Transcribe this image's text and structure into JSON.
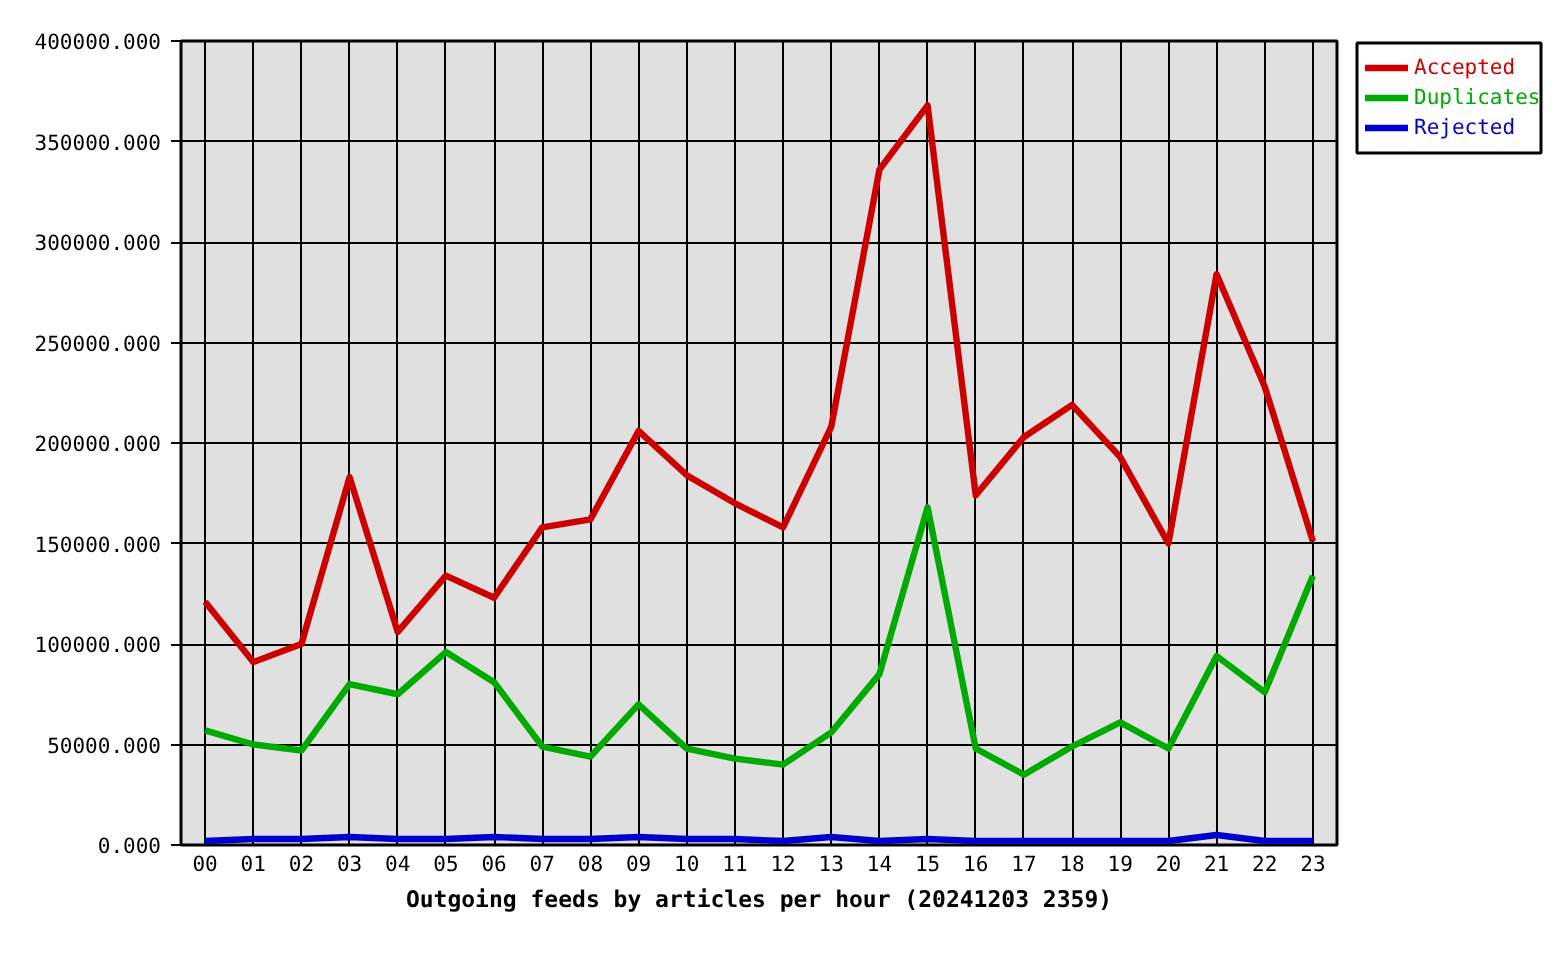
{
  "chart_data": {
    "type": "line",
    "xlabel": "Outgoing feeds by articles per hour (20241203 2359)",
    "categories": [
      "00",
      "01",
      "02",
      "03",
      "04",
      "05",
      "06",
      "07",
      "08",
      "09",
      "10",
      "11",
      "12",
      "13",
      "14",
      "15",
      "16",
      "17",
      "18",
      "19",
      "20",
      "21",
      "22",
      "23"
    ],
    "series": [
      {
        "name": "Accepted",
        "color": "#cc0000",
        "values": [
          121000,
          91000,
          100000,
          183000,
          106000,
          134000,
          123000,
          158000,
          162000,
          206000,
          184000,
          170000,
          158000,
          208000,
          336000,
          368000,
          174000,
          203000,
          219000,
          193000,
          150000,
          284000,
          228000,
          151000
        ]
      },
      {
        "name": "Duplicates",
        "color": "#00aa00",
        "values": [
          57000,
          50000,
          47000,
          80000,
          75000,
          96000,
          81000,
          49000,
          44000,
          70000,
          48000,
          43000,
          40000,
          56000,
          85000,
          168000,
          48000,
          35000,
          49000,
          61000,
          48000,
          94000,
          76000,
          134000
        ]
      },
      {
        "name": "Rejected",
        "color": "#0000cc",
        "values": [
          2000,
          3000,
          3000,
          4000,
          3000,
          3000,
          4000,
          3000,
          3000,
          4000,
          3000,
          3000,
          2000,
          4000,
          2000,
          3000,
          2000,
          2000,
          2000,
          2000,
          2000,
          5000,
          2000,
          2000
        ]
      }
    ],
    "ylim": [
      0,
      400000
    ],
    "yticks": [
      {
        "value": 0,
        "label": "0.000"
      },
      {
        "value": 50000,
        "label": "50000.000"
      },
      {
        "value": 100000,
        "label": "100000.000"
      },
      {
        "value": 150000,
        "label": "150000.000"
      },
      {
        "value": 200000,
        "label": "200000.000"
      },
      {
        "value": 250000,
        "label": "250000.000"
      },
      {
        "value": 300000,
        "label": "300000.000"
      },
      {
        "value": 350000,
        "label": "350000.000"
      },
      {
        "value": 400000,
        "label": "400000.000"
      }
    ],
    "grid": true,
    "legend": "top right",
    "line_style": "solid"
  }
}
